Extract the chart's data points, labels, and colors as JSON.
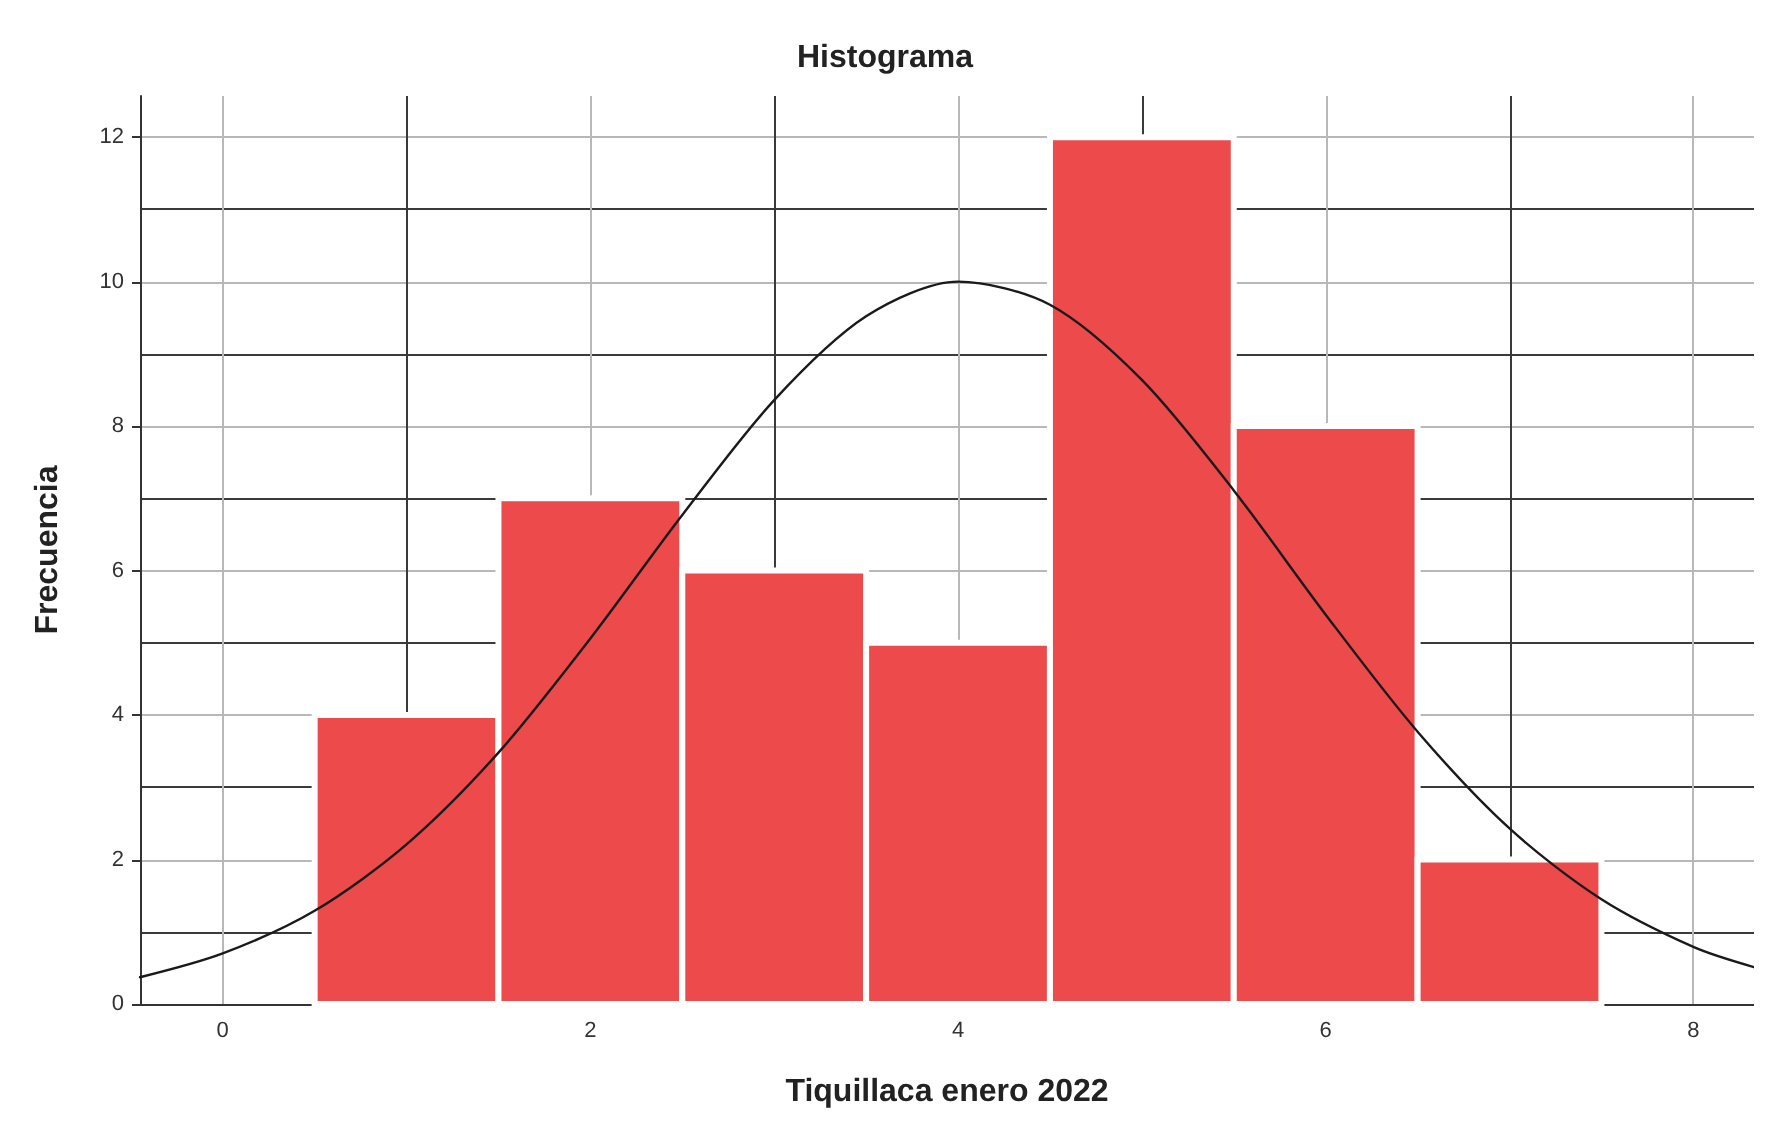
{
  "chart_data": {
    "type": "histogram",
    "title": "Histograma",
    "xlabel": "Tiquillaca enero 2022",
    "ylabel": "Frecuencia",
    "bins": [
      0.5,
      1.5,
      2.5,
      3.5,
      4.5,
      5.5,
      6.5,
      7.5
    ],
    "series": [
      {
        "color": "#ec4a4b",
        "values": [
          4,
          7,
          6,
          5,
          12,
          8,
          2
        ]
      },
      {
        "type": "line",
        "color": "#1a1a1a",
        "x": [
          -0.45,
          0,
          0.5,
          1,
          1.5,
          2,
          2.5,
          3,
          3.5,
          4,
          4.5,
          5,
          5.5,
          6,
          6.5,
          7,
          7.5,
          8,
          8.33
        ],
        "values": [
          0.37,
          0.7,
          1.29,
          2.21,
          3.48,
          5.06,
          6.77,
          8.36,
          9.52,
          10,
          9.68,
          8.64,
          7.11,
          5.39,
          3.77,
          2.43,
          1.45,
          0.79,
          0.51
        ]
      }
    ],
    "xlim": [
      -0.45,
      8.33
    ],
    "xticks": [
      0,
      2,
      4,
      6,
      8
    ],
    "ylim": [
      0,
      12.57
    ],
    "yticks": [
      0,
      2,
      4,
      6,
      8,
      10,
      12
    ],
    "grid": true
  }
}
